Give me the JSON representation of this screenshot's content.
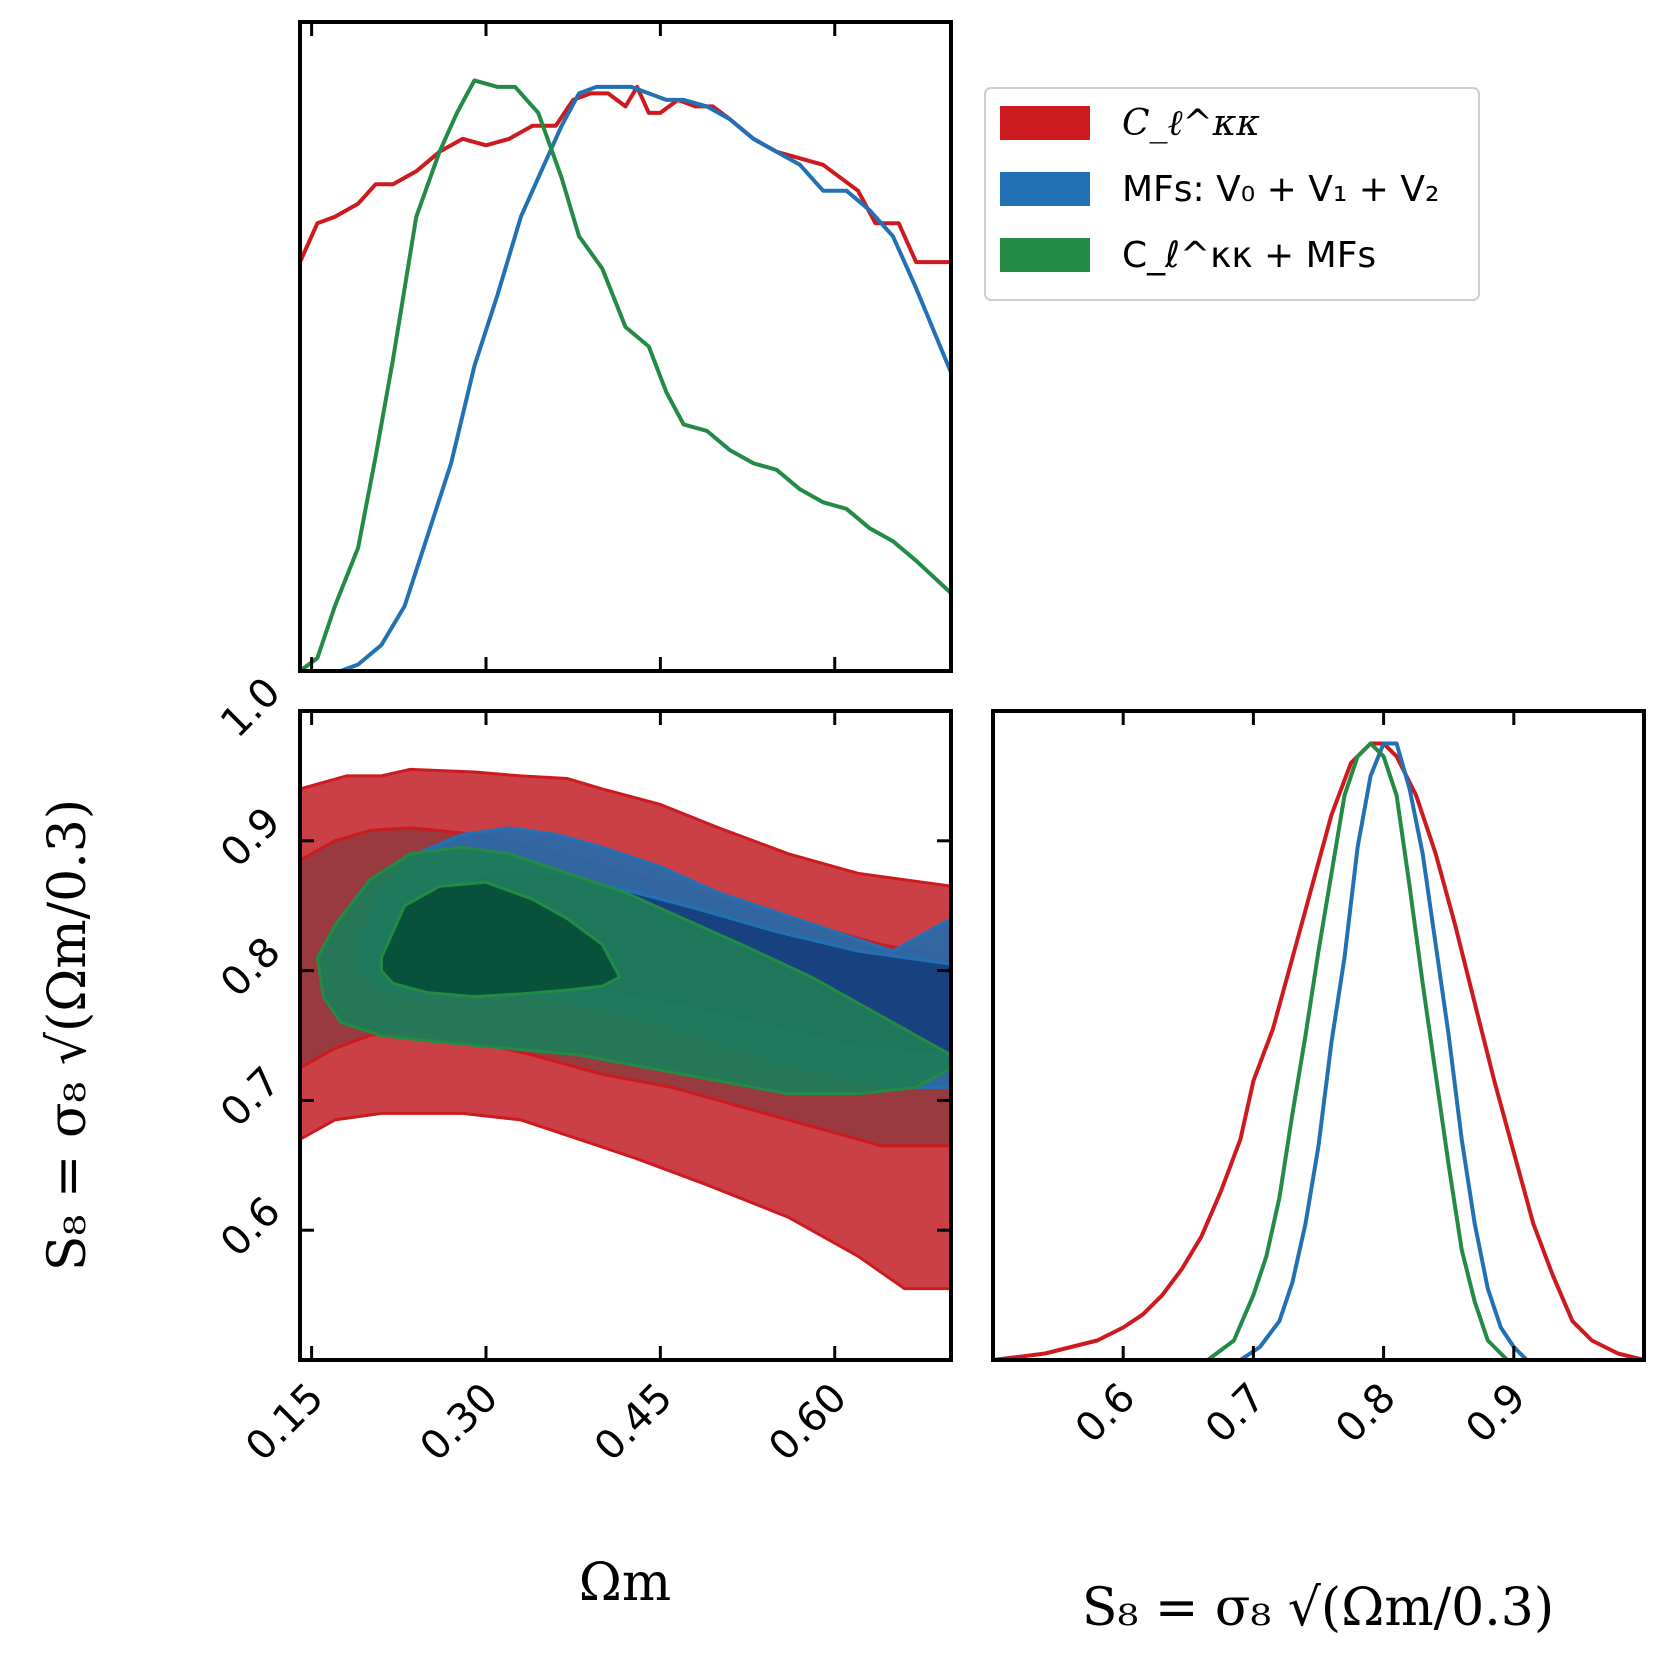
{
  "colors": {
    "cl": "#cc1a1f",
    "mfs": "#2271b5",
    "combined": "#238b45",
    "cl_fill": "#cb4046",
    "cl_inner_fill": "#943a40",
    "mfs_fill": "#2b68a6",
    "mfs_inner_fill": "#173f7d",
    "combined_fill": "#1f7a5a",
    "combined_inner_fill": "#07503a"
  },
  "legend": {
    "entries": [
      {
        "key": "cl",
        "label": "C_ℓ^κκ"
      },
      {
        "key": "mfs",
        "label": "MFs: V₀ + V₁ + V₂"
      },
      {
        "key": "combined",
        "label": "C_ℓ^κκ + MFs"
      }
    ]
  },
  "axes": {
    "omega_label": "Ωm",
    "s8_label": "S₈ = σ₈ √(Ωm/0.3)"
  },
  "chart_data": [
    {
      "type": "line",
      "panel": "marginal-omega_m",
      "title": "",
      "xlabel": "",
      "ylabel": "",
      "xlim": [
        0.14,
        0.7
      ],
      "ylim": [
        0,
        1.0
      ],
      "xticks": [
        0.15,
        0.3,
        0.45,
        0.6
      ],
      "series": [
        {
          "name": "C_ℓ^κκ",
          "key": "cl",
          "x": [
            0.14,
            0.155,
            0.17,
            0.19,
            0.205,
            0.22,
            0.24,
            0.26,
            0.28,
            0.3,
            0.32,
            0.34,
            0.36,
            0.375,
            0.39,
            0.405,
            0.42,
            0.43,
            0.44,
            0.45,
            0.465,
            0.48,
            0.495,
            0.51,
            0.53,
            0.55,
            0.57,
            0.59,
            0.605,
            0.62,
            0.635,
            0.655,
            0.67,
            0.7
          ],
          "y": [
            0.63,
            0.69,
            0.7,
            0.72,
            0.75,
            0.75,
            0.77,
            0.8,
            0.82,
            0.81,
            0.82,
            0.84,
            0.84,
            0.88,
            0.89,
            0.89,
            0.87,
            0.9,
            0.86,
            0.86,
            0.88,
            0.87,
            0.87,
            0.85,
            0.82,
            0.8,
            0.79,
            0.78,
            0.76,
            0.74,
            0.69,
            0.69,
            0.63,
            0.63
          ]
        },
        {
          "name": "MFs: V₀ + V₁ + V₂",
          "key": "mfs",
          "x": [
            0.175,
            0.19,
            0.21,
            0.23,
            0.25,
            0.27,
            0.29,
            0.31,
            0.33,
            0.35,
            0.365,
            0.38,
            0.395,
            0.41,
            0.425,
            0.44,
            0.455,
            0.47,
            0.49,
            0.51,
            0.53,
            0.55,
            0.57,
            0.59,
            0.61,
            0.63,
            0.65,
            0.67,
            0.7
          ],
          "y": [
            0.0,
            0.01,
            0.04,
            0.1,
            0.21,
            0.32,
            0.47,
            0.58,
            0.7,
            0.78,
            0.84,
            0.89,
            0.9,
            0.9,
            0.9,
            0.89,
            0.88,
            0.88,
            0.87,
            0.85,
            0.82,
            0.8,
            0.78,
            0.74,
            0.74,
            0.71,
            0.67,
            0.59,
            0.46
          ]
        },
        {
          "name": "C_ℓ^κκ + MFs",
          "key": "combined",
          "x": [
            0.14,
            0.155,
            0.17,
            0.19,
            0.205,
            0.22,
            0.24,
            0.26,
            0.275,
            0.29,
            0.31,
            0.325,
            0.345,
            0.365,
            0.38,
            0.4,
            0.42,
            0.44,
            0.455,
            0.47,
            0.49,
            0.51,
            0.53,
            0.55,
            0.57,
            0.59,
            0.61,
            0.63,
            0.65,
            0.67,
            0.7
          ],
          "y": [
            0.0,
            0.02,
            0.1,
            0.19,
            0.33,
            0.48,
            0.7,
            0.8,
            0.86,
            0.91,
            0.9,
            0.9,
            0.86,
            0.76,
            0.67,
            0.62,
            0.53,
            0.5,
            0.43,
            0.38,
            0.37,
            0.34,
            0.32,
            0.31,
            0.28,
            0.26,
            0.25,
            0.22,
            0.2,
            0.17,
            0.12
          ]
        }
      ]
    },
    {
      "type": "contour",
      "panel": "joint-omega_m-s8",
      "title": "",
      "xlabel": "Ωm",
      "ylabel": "S₈ = σ₈ √(Ωm/0.3)",
      "xlim": [
        0.14,
        0.7
      ],
      "ylim": [
        0.5,
        1.0
      ],
      "xticks": [
        0.15,
        0.3,
        0.45,
        0.6
      ],
      "yticks": [
        0.6,
        0.7,
        0.8,
        0.9,
        1.0
      ],
      "series": [
        {
          "name": "C_ℓ^κκ",
          "key": "cl",
          "level": "95%",
          "x": [
            0.14,
            0.18,
            0.21,
            0.235,
            0.29,
            0.33,
            0.37,
            0.4,
            0.45,
            0.5,
            0.56,
            0.62,
            0.7,
            0.7,
            0.66,
            0.62,
            0.56,
            0.49,
            0.43,
            0.38,
            0.33,
            0.28,
            0.24,
            0.21,
            0.17,
            0.14
          ],
          "y": [
            0.94,
            0.95,
            0.95,
            0.955,
            0.953,
            0.95,
            0.948,
            0.94,
            0.928,
            0.91,
            0.89,
            0.875,
            0.865,
            0.555,
            0.555,
            0.58,
            0.61,
            0.635,
            0.655,
            0.67,
            0.685,
            0.69,
            0.69,
            0.69,
            0.685,
            0.67
          ]
        },
        {
          "name": "C_ℓ^κκ",
          "key": "cl",
          "level": "68%",
          "x": [
            0.14,
            0.17,
            0.2,
            0.235,
            0.29,
            0.34,
            0.4,
            0.46,
            0.52,
            0.58,
            0.64,
            0.7,
            0.7,
            0.64,
            0.58,
            0.52,
            0.46,
            0.4,
            0.34,
            0.29,
            0.235,
            0.2,
            0.17,
            0.14
          ],
          "y": [
            0.885,
            0.9,
            0.908,
            0.91,
            0.905,
            0.895,
            0.88,
            0.865,
            0.85,
            0.835,
            0.82,
            0.81,
            0.665,
            0.665,
            0.68,
            0.695,
            0.71,
            0.72,
            0.735,
            0.745,
            0.755,
            0.75,
            0.74,
            0.725
          ]
        },
        {
          "name": "MFs: V₀ + V₁ + V₂",
          "key": "mfs",
          "level": "95%",
          "x": [
            0.19,
            0.21,
            0.24,
            0.28,
            0.32,
            0.36,
            0.4,
            0.45,
            0.5,
            0.55,
            0.6,
            0.65,
            0.7,
            0.7,
            0.65,
            0.6,
            0.55,
            0.5,
            0.45,
            0.4,
            0.35,
            0.3,
            0.25,
            0.21,
            0.19
          ],
          "y": [
            0.82,
            0.86,
            0.89,
            0.905,
            0.91,
            0.905,
            0.895,
            0.88,
            0.86,
            0.845,
            0.83,
            0.815,
            0.84,
            0.71,
            0.71,
            0.72,
            0.73,
            0.745,
            0.76,
            0.77,
            0.78,
            0.785,
            0.78,
            0.785,
            0.8
          ]
        },
        {
          "name": "MFs: V₀ + V₁ + V₂",
          "key": "mfs",
          "level": "68%",
          "x": [
            0.245,
            0.27,
            0.31,
            0.36,
            0.42,
            0.48,
            0.55,
            0.62,
            0.7,
            0.7,
            0.62,
            0.55,
            0.48,
            0.42,
            0.36,
            0.31,
            0.27,
            0.245
          ],
          "y": [
            0.835,
            0.865,
            0.878,
            0.875,
            0.862,
            0.848,
            0.83,
            0.815,
            0.805,
            0.735,
            0.74,
            0.755,
            0.77,
            0.78,
            0.79,
            0.795,
            0.8,
            0.815
          ]
        },
        {
          "name": "C_ℓ^κκ + MFs",
          "key": "combined",
          "level": "95%",
          "x": [
            0.155,
            0.17,
            0.2,
            0.235,
            0.28,
            0.32,
            0.37,
            0.42,
            0.47,
            0.52,
            0.58,
            0.63,
            0.67,
            0.7,
            0.7,
            0.67,
            0.62,
            0.56,
            0.5,
            0.44,
            0.38,
            0.32,
            0.26,
            0.21,
            0.175,
            0.16
          ],
          "y": [
            0.81,
            0.835,
            0.87,
            0.89,
            0.895,
            0.89,
            0.875,
            0.86,
            0.84,
            0.82,
            0.795,
            0.77,
            0.75,
            0.735,
            0.725,
            0.71,
            0.705,
            0.705,
            0.715,
            0.725,
            0.735,
            0.74,
            0.745,
            0.75,
            0.76,
            0.78
          ]
        },
        {
          "name": "C_ℓ^κκ + MFs",
          "key": "combined",
          "level": "68%",
          "x": [
            0.21,
            0.23,
            0.26,
            0.3,
            0.34,
            0.37,
            0.4,
            0.415,
            0.4,
            0.37,
            0.33,
            0.29,
            0.25,
            0.22,
            0.21
          ],
          "y": [
            0.81,
            0.85,
            0.865,
            0.868,
            0.855,
            0.84,
            0.82,
            0.795,
            0.788,
            0.785,
            0.782,
            0.78,
            0.783,
            0.79,
            0.8
          ]
        }
      ]
    },
    {
      "type": "line",
      "panel": "marginal-s8",
      "title": "",
      "xlabel": "S₈ = σ₈ √(Ωm/0.3)",
      "ylabel": "",
      "xlim": [
        0.5,
        1.0
      ],
      "ylim": [
        0,
        1.0
      ],
      "xticks": [
        0.6,
        0.7,
        0.8,
        0.9
      ],
      "series": [
        {
          "name": "C_ℓ^κκ",
          "key": "cl",
          "x": [
            0.5,
            0.52,
            0.54,
            0.56,
            0.58,
            0.6,
            0.615,
            0.63,
            0.645,
            0.66,
            0.675,
            0.69,
            0.7,
            0.715,
            0.73,
            0.745,
            0.76,
            0.775,
            0.79,
            0.8,
            0.81,
            0.825,
            0.84,
            0.855,
            0.87,
            0.885,
            0.9,
            0.915,
            0.93,
            0.945,
            0.96,
            0.98,
            1.0
          ],
          "y": [
            0.0,
            0.005,
            0.01,
            0.02,
            0.03,
            0.05,
            0.07,
            0.1,
            0.14,
            0.19,
            0.26,
            0.34,
            0.43,
            0.51,
            0.62,
            0.73,
            0.84,
            0.92,
            0.95,
            0.95,
            0.93,
            0.87,
            0.78,
            0.67,
            0.55,
            0.43,
            0.32,
            0.21,
            0.13,
            0.06,
            0.03,
            0.01,
            0.0
          ]
        },
        {
          "name": "MFs: V₀ + V₁ + V₂",
          "key": "mfs",
          "x": [
            0.69,
            0.705,
            0.72,
            0.73,
            0.74,
            0.75,
            0.76,
            0.77,
            0.78,
            0.79,
            0.8,
            0.81,
            0.82,
            0.83,
            0.84,
            0.85,
            0.86,
            0.87,
            0.88,
            0.89,
            0.9,
            0.91
          ],
          "y": [
            0.0,
            0.02,
            0.06,
            0.12,
            0.21,
            0.33,
            0.49,
            0.62,
            0.79,
            0.9,
            0.95,
            0.95,
            0.88,
            0.78,
            0.64,
            0.5,
            0.34,
            0.21,
            0.11,
            0.05,
            0.02,
            0.0
          ]
        },
        {
          "name": "C_ℓ^κκ + MFs",
          "key": "combined",
          "x": [
            0.665,
            0.685,
            0.7,
            0.71,
            0.72,
            0.73,
            0.74,
            0.75,
            0.76,
            0.77,
            0.78,
            0.79,
            0.8,
            0.81,
            0.82,
            0.83,
            0.84,
            0.85,
            0.86,
            0.87,
            0.88,
            0.895
          ],
          "y": [
            0.0,
            0.03,
            0.1,
            0.16,
            0.25,
            0.38,
            0.5,
            0.63,
            0.75,
            0.87,
            0.93,
            0.95,
            0.93,
            0.87,
            0.73,
            0.58,
            0.44,
            0.3,
            0.17,
            0.09,
            0.03,
            0.0
          ]
        }
      ]
    }
  ]
}
